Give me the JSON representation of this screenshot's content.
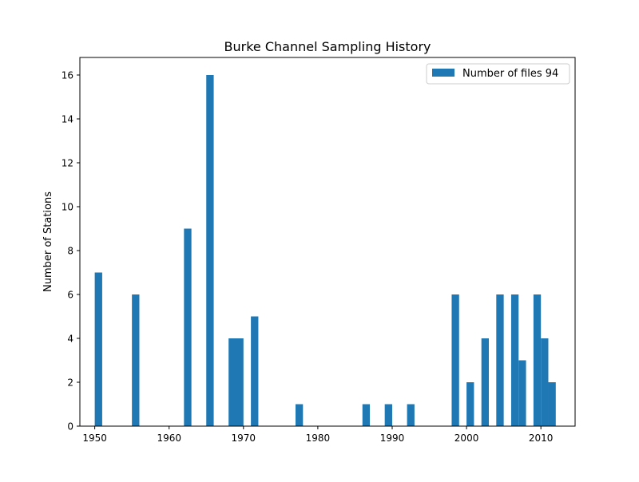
{
  "chart_data": {
    "type": "bar",
    "title": "Burke Channel Sampling History",
    "xlabel": "",
    "ylabel": "Number of Stations",
    "xlim": [
      1948.0,
      2014.6
    ],
    "ylim": [
      0,
      16.8
    ],
    "xticks": [
      1950,
      1960,
      1970,
      1980,
      1990,
      2000,
      2010
    ],
    "yticks": [
      0,
      2,
      4,
      6,
      8,
      10,
      12,
      14,
      16
    ],
    "legend": {
      "position": "top-right",
      "label": "Number of files 94"
    },
    "bar_color": "#1f77b4",
    "bin_width": 1.0,
    "series": [
      {
        "name": "Number of files 94",
        "bins": [
          {
            "x": 1950.5,
            "value": 7
          },
          {
            "x": 1955.5,
            "value": 6
          },
          {
            "x": 1962.5,
            "value": 9
          },
          {
            "x": 1965.5,
            "value": 16
          },
          {
            "x": 1968.5,
            "value": 4
          },
          {
            "x": 1969.5,
            "value": 4
          },
          {
            "x": 1971.5,
            "value": 5
          },
          {
            "x": 1977.5,
            "value": 1
          },
          {
            "x": 1986.5,
            "value": 1
          },
          {
            "x": 1989.5,
            "value": 1
          },
          {
            "x": 1992.5,
            "value": 1
          },
          {
            "x": 1998.5,
            "value": 6
          },
          {
            "x": 2000.5,
            "value": 2
          },
          {
            "x": 2002.5,
            "value": 4
          },
          {
            "x": 2004.5,
            "value": 6
          },
          {
            "x": 2006.5,
            "value": 6
          },
          {
            "x": 2007.5,
            "value": 3
          },
          {
            "x": 2009.5,
            "value": 6
          },
          {
            "x": 2010.5,
            "value": 4
          },
          {
            "x": 2011.5,
            "value": 2
          }
        ]
      }
    ]
  }
}
